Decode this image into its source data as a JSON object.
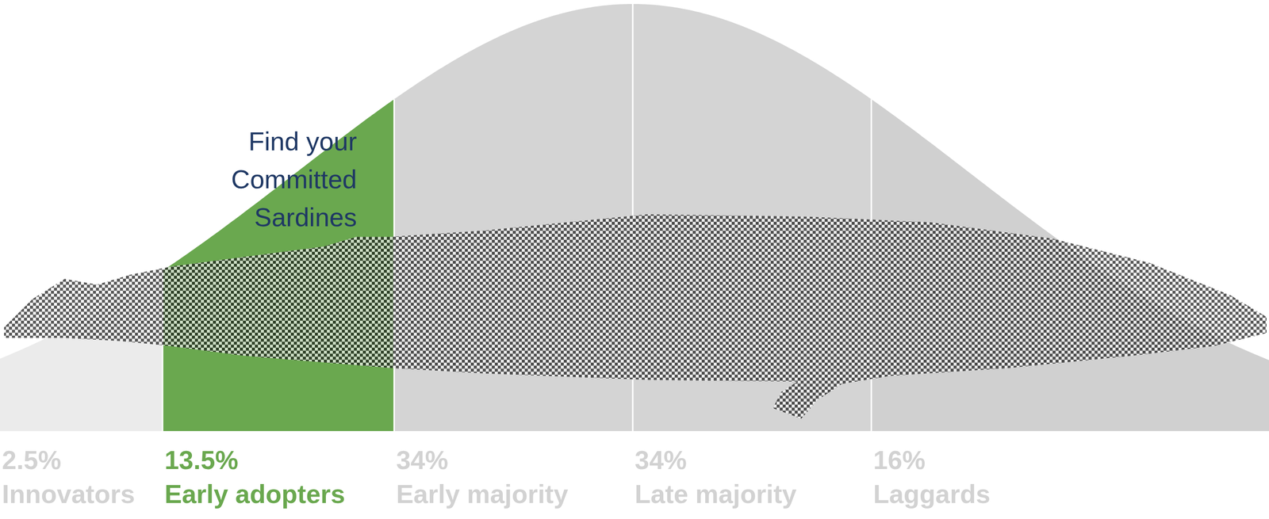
{
  "chart_data": {
    "type": "bell_curve",
    "categories": [
      "Innovators",
      "Early adopters",
      "Early majority",
      "Late majority",
      "Laggards"
    ],
    "values": [
      2.5,
      13.5,
      34,
      34,
      16
    ],
    "value_labels": [
      "2.5%",
      "13.5%",
      "34%",
      "34%",
      "16%"
    ],
    "colors": [
      "#ebebeb",
      "#6aa84f",
      "#d4d4d4",
      "#d4d4d4",
      "#d0d0d0"
    ],
    "data_labels": true,
    "annotation": [
      "Find your",
      "Committed",
      "Sardines"
    ]
  }
}
